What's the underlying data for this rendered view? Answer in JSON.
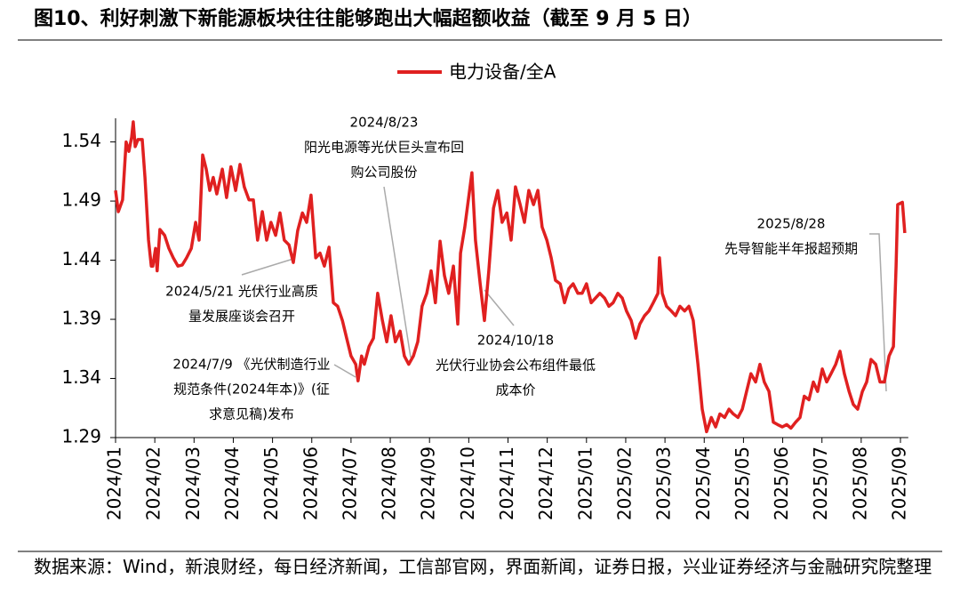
{
  "chart_data": {
    "type": "line",
    "title": "图10、利好刺激下新能源板块往往能够跑出大幅超额收益（截至 9 月 5 日）",
    "source": "数据来源：Wind，新浪财经，每日经济新闻，工信部官网，界面新闻，证券日报，兴业证券经济与金融研究院整理",
    "legend": "top",
    "xlim": [
      0,
      20.2
    ],
    "xticks": [
      {
        "value": 0,
        "label": "2024/01"
      },
      {
        "value": 1,
        "label": "2024/02"
      },
      {
        "value": 2,
        "label": "2024/03"
      },
      {
        "value": 3,
        "label": "2024/04"
      },
      {
        "value": 4,
        "label": "2024/05"
      },
      {
        "value": 5,
        "label": "2024/06"
      },
      {
        "value": 6,
        "label": "2024/07"
      },
      {
        "value": 7,
        "label": "2024/08"
      },
      {
        "value": 8,
        "label": "2024/09"
      },
      {
        "value": 9,
        "label": "2024/10"
      },
      {
        "value": 10,
        "label": "2024/11"
      },
      {
        "value": 11,
        "label": "2024/12"
      },
      {
        "value": 12,
        "label": "2025/01"
      },
      {
        "value": 13,
        "label": "2025/02"
      },
      {
        "value": 14,
        "label": "2025/03"
      },
      {
        "value": 15,
        "label": "2025/04"
      },
      {
        "value": 16,
        "label": "2025/05"
      },
      {
        "value": 17,
        "label": "2025/06"
      },
      {
        "value": 18,
        "label": "2025/07"
      },
      {
        "value": 19,
        "label": "2025/08"
      },
      {
        "value": 20,
        "label": "2025/09"
      }
    ],
    "ylim": [
      1.29,
      1.56
    ],
    "yticks": [
      1.29,
      1.34,
      1.39,
      1.44,
      1.49,
      1.54
    ],
    "x": [
      0,
      0.07,
      0.18,
      0.27,
      0.34,
      0.41,
      0.45,
      0.5,
      0.57,
      0.68,
      0.75,
      0.84,
      0.91,
      0.95,
      1.02,
      1.06,
      1.13,
      1.25,
      1.36,
      1.47,
      1.59,
      1.7,
      1.81,
      1.93,
      2.04,
      2.13,
      2.22,
      2.31,
      2.4,
      2.49,
      2.58,
      2.72,
      2.83,
      2.94,
      3.06,
      3.17,
      3.28,
      3.4,
      3.51,
      3.62,
      3.74,
      3.85,
      3.96,
      4.08,
      4.19,
      4.3,
      4.42,
      4.53,
      4.64,
      4.76,
      4.87,
      4.98,
      5.1,
      5.21,
      5.32,
      5.44,
      5.55,
      5.66,
      5.78,
      5.89,
      6,
      6.12,
      6.18,
      6.27,
      6.34,
      6.46,
      6.57,
      6.68,
      6.8,
      6.91,
      7.02,
      7.13,
      7.25,
      7.36,
      7.47,
      7.59,
      7.7,
      7.81,
      7.93,
      8.04,
      8.15,
      8.27,
      8.38,
      8.49,
      8.61,
      8.72,
      8.79,
      8.9,
      8.99,
      9.08,
      9.17,
      9.29,
      9.4,
      9.51,
      9.63,
      9.74,
      9.85,
      9.97,
      10.08,
      10.19,
      10.31,
      10.42,
      10.53,
      10.65,
      10.76,
      10.87,
      10.99,
      11.1,
      11.21,
      11.33,
      11.44,
      11.55,
      11.66,
      11.78,
      11.89,
      12,
      12.12,
      12.23,
      12.34,
      12.46,
      12.57,
      12.68,
      12.8,
      12.91,
      13.02,
      13.14,
      13.25,
      13.36,
      13.48,
      13.59,
      13.7,
      13.82,
      13.86,
      13.93,
      14.04,
      14.16,
      14.27,
      14.38,
      14.5,
      14.61,
      14.72,
      14.84,
      14.95,
      15.06,
      15.18,
      15.29,
      15.4,
      15.52,
      15.63,
      15.74,
      15.86,
      15.97,
      16.08,
      16.19,
      16.31,
      16.42,
      16.53,
      16.65,
      16.76,
      16.87,
      16.99,
      17.1,
      17.21,
      17.33,
      17.44,
      17.55,
      17.67,
      17.78,
      17.89,
      18.01,
      18.12,
      18.23,
      18.35,
      18.46,
      18.57,
      18.69,
      18.8,
      18.91,
      19.03,
      19.14,
      19.25,
      19.37,
      19.48,
      19.59,
      19.71,
      19.82,
      19.89,
      19.93,
      20.05,
      20.11
    ],
    "series": [
      {
        "name": "电力设备/全A",
        "color": "#e02020",
        "values": [
          1.499,
          1.481,
          1.491,
          1.54,
          1.532,
          1.544,
          1.557,
          1.536,
          1.542,
          1.542,
          1.51,
          1.457,
          1.435,
          1.435,
          1.45,
          1.431,
          1.466,
          1.461,
          1.45,
          1.442,
          1.435,
          1.436,
          1.442,
          1.45,
          1.472,
          1.457,
          1.529,
          1.517,
          1.499,
          1.51,
          1.496,
          1.517,
          1.493,
          1.519,
          1.499,
          1.521,
          1.502,
          1.491,
          1.491,
          1.457,
          1.481,
          1.457,
          1.472,
          1.461,
          1.48,
          1.457,
          1.453,
          1.438,
          1.465,
          1.48,
          1.472,
          1.495,
          1.442,
          1.446,
          1.435,
          1.451,
          1.404,
          1.401,
          1.389,
          1.374,
          1.359,
          1.352,
          1.338,
          1.359,
          1.352,
          1.367,
          1.374,
          1.412,
          1.389,
          1.371,
          1.393,
          1.371,
          1.38,
          1.359,
          1.352,
          1.359,
          1.371,
          1.401,
          1.412,
          1.431,
          1.404,
          1.456,
          1.427,
          1.412,
          1.435,
          1.386,
          1.446,
          1.468,
          1.491,
          1.514,
          1.457,
          1.42,
          1.389,
          1.431,
          1.484,
          1.499,
          1.472,
          1.48,
          1.457,
          1.502,
          1.487,
          1.472,
          1.499,
          1.487,
          1.499,
          1.468,
          1.457,
          1.442,
          1.423,
          1.42,
          1.404,
          1.416,
          1.42,
          1.412,
          1.412,
          1.42,
          1.404,
          1.408,
          1.412,
          1.408,
          1.401,
          1.404,
          1.412,
          1.408,
          1.397,
          1.389,
          1.374,
          1.386,
          1.393,
          1.397,
          1.404,
          1.412,
          1.442,
          1.412,
          1.401,
          1.397,
          1.393,
          1.401,
          1.397,
          1.401,
          1.389,
          1.352,
          1.314,
          1.295,
          1.307,
          1.299,
          1.31,
          1.307,
          1.314,
          1.31,
          1.307,
          1.314,
          1.329,
          1.344,
          1.337,
          1.352,
          1.337,
          1.329,
          1.303,
          1.301,
          1.299,
          1.301,
          1.298,
          1.303,
          1.307,
          1.325,
          1.322,
          1.337,
          1.329,
          1.348,
          1.337,
          1.344,
          1.352,
          1.363,
          1.344,
          1.329,
          1.318,
          1.314,
          1.329,
          1.337,
          1.356,
          1.352,
          1.337,
          1.337,
          1.359,
          1.367,
          1.435,
          1.487,
          1.489,
          1.463
        ]
      }
    ],
    "annotations": [
      {
        "lines": [
          "2024/8/23",
          "阳光电源等光伏巨头宣布回",
          "购公司股份"
        ]
      },
      {
        "lines": [
          "2024/5/21 光伏行业高质",
          "量发展座谈会召开"
        ]
      },
      {
        "lines": [
          "2024/7/9 《光伏制造行业",
          "规范条件(2024年本)》(征",
          "求意见稿)发布"
        ]
      },
      {
        "lines": [
          "2024/10/18",
          "光伏行业协会公布组件最低",
          "成本价"
        ]
      },
      {
        "lines": [
          "2025/8/28",
          "先导智能半年报超预期"
        ]
      }
    ]
  }
}
